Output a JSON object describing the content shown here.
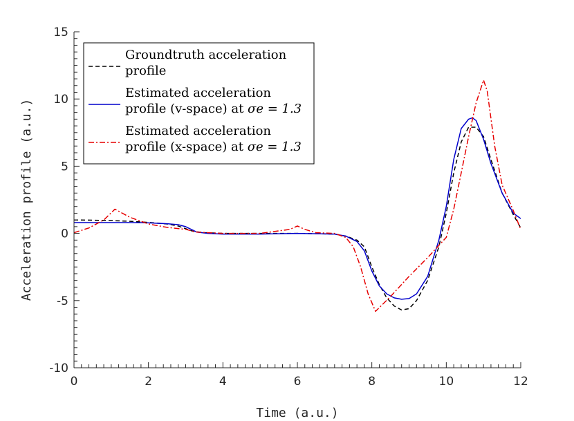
{
  "chart_data": {
    "type": "line",
    "title": "",
    "xlabel": "Time (a.u.)",
    "ylabel": "Acceleration profile (a.u.)",
    "xlim": [
      0,
      12
    ],
    "ylim": [
      -10,
      15
    ],
    "xticks": [
      0,
      2,
      4,
      6,
      8,
      10,
      12
    ],
    "xtick_labels": [
      "0",
      "2",
      "4",
      "6",
      "8",
      "10",
      "12"
    ],
    "yticks": [
      -10,
      -5,
      0,
      5,
      10,
      15
    ],
    "ytick_labels": [
      "-10",
      "-5",
      "0",
      "5",
      "10",
      "15"
    ],
    "grid": false,
    "legend_position": "top-left",
    "series": [
      {
        "legend_line1": "Groundtruth acceleration",
        "legend_line2": "profile",
        "legend_line2_math": "",
        "color": "#000000",
        "dash": "6,4",
        "x": [
          0,
          0.5,
          1,
          1.5,
          2,
          2.5,
          2.8,
          3.0,
          3.2,
          3.5,
          4,
          5,
          6,
          7,
          7.3,
          7.6,
          7.8,
          8.0,
          8.2,
          8.4,
          8.6,
          8.8,
          9.0,
          9.2,
          9.5,
          9.8,
          10.0,
          10.2,
          10.4,
          10.6,
          10.8,
          11.0,
          11.2,
          11.5,
          11.8,
          12.0
        ],
        "y": [
          1.0,
          0.98,
          0.95,
          0.9,
          0.82,
          0.7,
          0.55,
          0.35,
          0.15,
          0.05,
          0.0,
          0.0,
          0.0,
          -0.05,
          -0.2,
          -0.5,
          -1.0,
          -2.5,
          -3.8,
          -4.8,
          -5.4,
          -5.7,
          -5.6,
          -5.0,
          -3.5,
          -1.0,
          1.5,
          4.5,
          6.8,
          7.9,
          7.9,
          7.2,
          5.5,
          3.0,
          1.4,
          0.4
        ]
      },
      {
        "legend_line1": "Estimated acceleration",
        "legend_line2": "profile (v-space) at ",
        "legend_line2_math": "σe = 1.3",
        "color": "#0000cc",
        "dash": "",
        "x": [
          0,
          0.5,
          1,
          1.5,
          2,
          2.5,
          2.8,
          3.0,
          3.3,
          3.6,
          4,
          5,
          6,
          7,
          7.3,
          7.6,
          7.8,
          8.0,
          8.2,
          8.4,
          8.6,
          8.8,
          9.0,
          9.2,
          9.5,
          9.8,
          10.0,
          10.2,
          10.4,
          10.6,
          10.7,
          10.8,
          11.0,
          11.2,
          11.5,
          11.8,
          12.0
        ],
        "y": [
          0.8,
          0.8,
          0.8,
          0.8,
          0.78,
          0.72,
          0.65,
          0.5,
          0.1,
          0.0,
          -0.05,
          -0.05,
          0.0,
          -0.05,
          -0.2,
          -0.6,
          -1.3,
          -2.8,
          -3.9,
          -4.5,
          -4.8,
          -4.9,
          -4.85,
          -4.5,
          -3.2,
          -0.5,
          2.0,
          5.5,
          7.8,
          8.5,
          8.6,
          8.4,
          7.0,
          5.2,
          3.0,
          1.5,
          1.1
        ]
      },
      {
        "legend_line1": "Estimated acceleration",
        "legend_line2": "profile (x-space) at ",
        "legend_line2_math": "σe = 1.3",
        "color": "#e60000",
        "dash": "8,3,2,3",
        "x": [
          0,
          0.4,
          0.8,
          1.1,
          1.5,
          2,
          2.5,
          3.0,
          3.3,
          3.6,
          4,
          5,
          5.8,
          6.0,
          6.2,
          6.5,
          7,
          7.3,
          7.5,
          7.7,
          7.9,
          8.1,
          8.5,
          9.0,
          9.5,
          10.0,
          10.2,
          10.4,
          10.6,
          10.8,
          11.0,
          11.1,
          11.3,
          11.5,
          11.8,
          12.0
        ],
        "y": [
          0.05,
          0.4,
          1.0,
          1.8,
          1.2,
          0.7,
          0.45,
          0.3,
          0.1,
          0.05,
          0.0,
          0.0,
          0.3,
          0.55,
          0.3,
          0.05,
          0.0,
          -0.3,
          -1.0,
          -2.5,
          -4.5,
          -5.8,
          -4.7,
          -3.2,
          -1.8,
          -0.3,
          1.8,
          4.5,
          7.2,
          9.7,
          11.4,
          10.6,
          6.5,
          3.6,
          1.7,
          0.3
        ]
      }
    ]
  }
}
